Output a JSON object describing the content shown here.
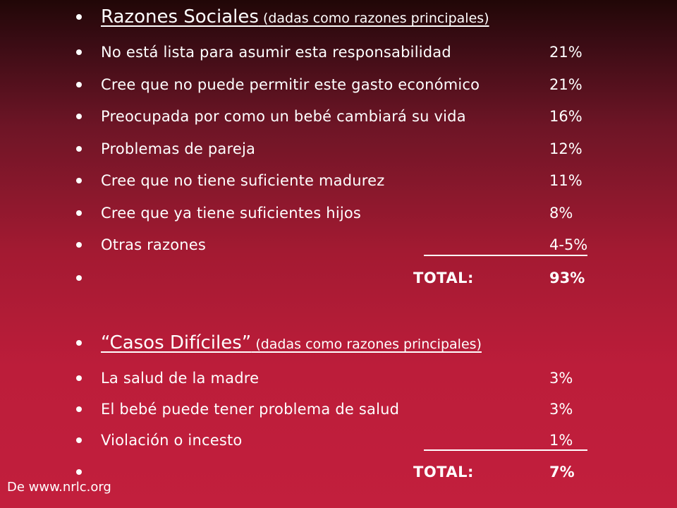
{
  "section_social": {
    "title": "Razones Sociales",
    "subtitle": " (dadas como razones principales)",
    "items": [
      {
        "label": "No está lista para asumir esta responsabilidad",
        "value": "21%"
      },
      {
        "label": "Cree que no puede permitir este gasto económico",
        "value": "21%"
      },
      {
        "label": "Preocupada por como un bebé cambiará su vida",
        "value": "16%"
      },
      {
        "label": "Problemas de pareja",
        "value": "12%"
      },
      {
        "label": "Cree que no tiene suficiente madurez",
        "value": "11%"
      },
      {
        "label": "Cree que ya tiene suficientes hijos",
        "value": "8%"
      },
      {
        "label": "Otras razones",
        "value": "4-5%"
      }
    ],
    "total_label": "TOTAL:",
    "total_value": "93%"
  },
  "section_hard": {
    "title": "“Casos Difíciles”",
    "subtitle": " (dadas como razones principales)",
    "items": [
      {
        "label": "La salud de la madre",
        "value": "3%"
      },
      {
        "label": "El bebé puede tener problema de salud",
        "value": "3%"
      },
      {
        "label": "Violación o incesto",
        "value": "1%"
      }
    ],
    "total_label": "TOTAL:",
    "total_value": "7%"
  },
  "source": "De www.nrlc.org",
  "colors": {
    "background_top": "#210707",
    "background_bottom": "#c21f3d",
    "text": "#ffffff"
  }
}
